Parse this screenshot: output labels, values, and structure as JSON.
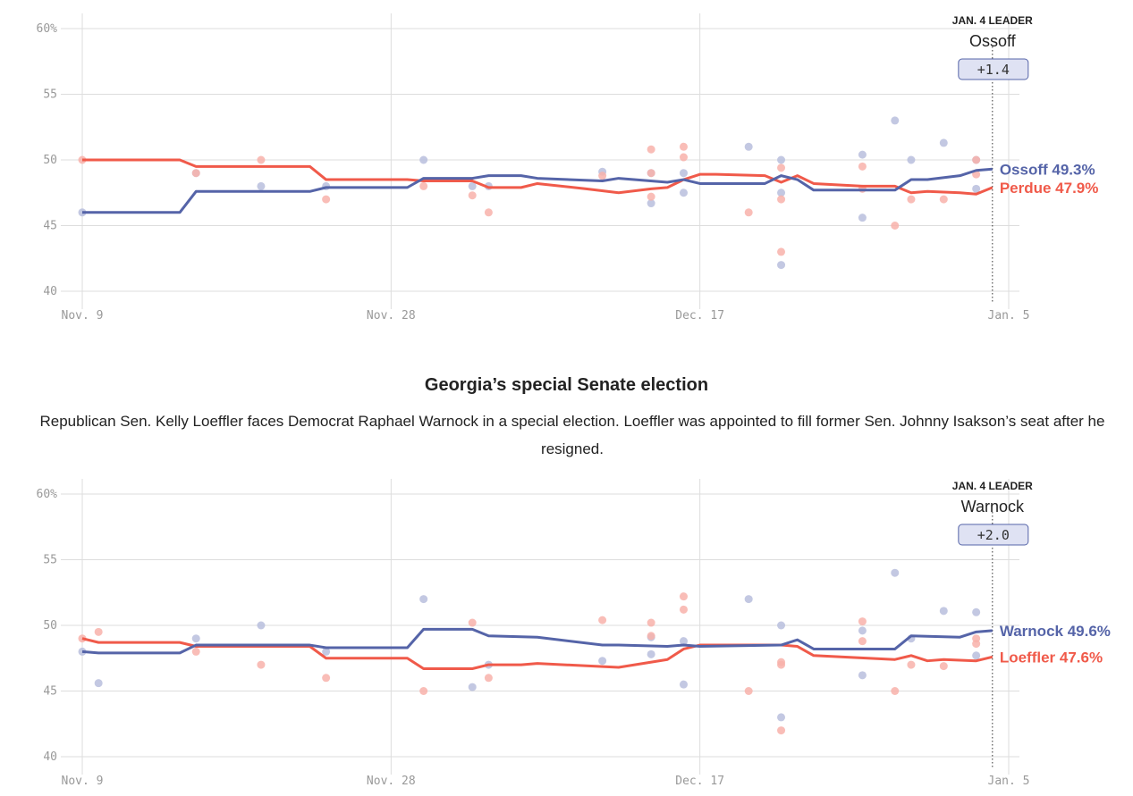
{
  "chart_data": [
    {
      "type": "line",
      "xlim": [
        "Nov. 9",
        "Jan. 5"
      ],
      "ylim": [
        40,
        60
      ],
      "xticks": [
        "Nov. 9",
        "Nov. 28",
        "Dec. 17",
        "Jan. 5"
      ],
      "yticks": [
        40,
        45,
        50,
        55,
        {
          "value": 60,
          "label": "60%"
        }
      ],
      "grid": true,
      "leader": {
        "date": "Jan. 4",
        "heading": "JAN. 4 LEADER",
        "name": "Ossoff",
        "margin": "+1.4"
      },
      "series": [
        {
          "kind": "dots",
          "color": "#b8bedd",
          "x": [
            "Nov. 9",
            "Nov. 16",
            "Nov. 20",
            "Nov. 24",
            "Nov. 30",
            "Dec. 3",
            "Dec. 4",
            "Dec. 11",
            "Dec. 14",
            "Dec. 14",
            "Dec. 16",
            "Dec. 16",
            "Dec. 20",
            "Dec. 22",
            "Dec. 22",
            "Dec. 22",
            "Dec. 27",
            "Dec. 27",
            "Dec. 29",
            "Dec. 30",
            "Jan. 1",
            "Jan. 3",
            "Jan. 3"
          ],
          "values": [
            46,
            49,
            48,
            48,
            50,
            48,
            48,
            49.1,
            49,
            46.7,
            49,
            47.5,
            51,
            50,
            47.5,
            42,
            50.4,
            45.6,
            53,
            50,
            51.3,
            50,
            47.8
          ]
        },
        {
          "kind": "dots",
          "color": "#f8b1aa",
          "x": [
            "Nov. 9",
            "Nov. 16",
            "Nov. 20",
            "Nov. 24",
            "Nov. 30",
            "Dec. 3",
            "Dec. 4",
            "Dec. 11",
            "Dec. 14",
            "Dec. 14",
            "Dec. 14",
            "Dec. 16",
            "Dec. 16",
            "Dec. 20",
            "Dec. 22",
            "Dec. 22",
            "Dec. 22",
            "Dec. 27",
            "Dec. 27",
            "Dec. 29",
            "Dec. 30",
            "Jan. 1",
            "Jan. 3",
            "Jan. 3"
          ],
          "values": [
            50,
            49,
            50,
            47,
            48,
            47.3,
            46,
            48.8,
            50.8,
            49,
            47.2,
            51,
            50.2,
            46,
            49.4,
            47,
            43,
            49.5,
            47.8,
            45,
            47,
            47,
            50,
            48.9
          ]
        },
        {
          "kind": "line",
          "color": "#f05a4a",
          "label": "Perdue 47.9%",
          "x": [
            "Nov. 9",
            "Nov. 15",
            "Nov. 16",
            "Nov. 23",
            "Nov. 24",
            "Nov. 29",
            "Nov. 30",
            "Dec. 3",
            "Dec. 4",
            "Dec. 6",
            "Dec. 7",
            "Dec. 10",
            "Dec. 12",
            "Dec. 14",
            "Dec. 15",
            "Dec. 16",
            "Dec. 17",
            "Dec. 18",
            "Dec. 21",
            "Dec. 22",
            "Dec. 23",
            "Dec. 24",
            "Dec. 27",
            "Dec. 29",
            "Dec. 30",
            "Dec. 31",
            "Jan. 2",
            "Jan. 3",
            "Jan. 4"
          ],
          "values": [
            50,
            50,
            49.5,
            49.5,
            48.5,
            48.5,
            48.4,
            48.4,
            47.9,
            47.9,
            48.2,
            47.8,
            47.5,
            47.8,
            47.9,
            48.5,
            48.9,
            48.9,
            48.8,
            48.3,
            48.8,
            48.2,
            48.0,
            48.0,
            47.5,
            47.6,
            47.5,
            47.4,
            47.9
          ]
        },
        {
          "kind": "line",
          "color": "#5564a8",
          "label": "Ossoff 49.3%",
          "x": [
            "Nov. 9",
            "Nov. 15",
            "Nov. 16",
            "Nov. 23",
            "Nov. 24",
            "Nov. 29",
            "Nov. 30",
            "Dec. 3",
            "Dec. 4",
            "Dec. 6",
            "Dec. 7",
            "Dec. 11",
            "Dec. 12",
            "Dec. 15",
            "Dec. 16",
            "Dec. 17",
            "Dec. 21",
            "Dec. 22",
            "Dec. 23",
            "Dec. 24",
            "Dec. 29",
            "Dec. 30",
            "Dec. 31",
            "Jan. 2",
            "Jan. 3",
            "Jan. 4"
          ],
          "values": [
            46,
            46,
            47.6,
            47.6,
            47.9,
            47.9,
            48.6,
            48.6,
            48.8,
            48.8,
            48.6,
            48.4,
            48.6,
            48.3,
            48.5,
            48.2,
            48.2,
            48.8,
            48.5,
            47.7,
            47.7,
            48.5,
            48.5,
            48.8,
            49.2,
            49.3
          ]
        }
      ]
    },
    {
      "type": "line",
      "title": "Georgia’s special Senate election",
      "subtitle": "Republican Sen. Kelly Loeffler faces Democrat Raphael Warnock in a special election. Loeffler was appointed to fill former Sen. Johnny Isakson’s seat after he resigned.",
      "xlim": [
        "Nov. 9",
        "Jan. 5"
      ],
      "ylim": [
        40,
        60
      ],
      "xticks": [
        "Nov. 9",
        "Nov. 28",
        "Dec. 17",
        "Jan. 5"
      ],
      "yticks": [
        40,
        45,
        50,
        55,
        {
          "value": 60,
          "label": "60%"
        }
      ],
      "grid": true,
      "leader": {
        "date": "Jan. 4",
        "heading": "JAN. 4 LEADER",
        "name": "Warnock",
        "margin": "+2.0"
      },
      "series": [
        {
          "kind": "dots",
          "color": "#b8bedd",
          "x": [
            "Nov. 9",
            "Nov. 10",
            "Nov. 16",
            "Nov. 20",
            "Nov. 24",
            "Nov. 30",
            "Dec. 3",
            "Dec. 4",
            "Dec. 11",
            "Dec. 14",
            "Dec. 14",
            "Dec. 16",
            "Dec. 16",
            "Dec. 20",
            "Dec. 22",
            "Dec. 22",
            "Dec. 27",
            "Dec. 27",
            "Dec. 29",
            "Dec. 30",
            "Jan. 1",
            "Jan. 3",
            "Jan. 3"
          ],
          "values": [
            48,
            45.6,
            49,
            50,
            48,
            52,
            45.3,
            47,
            47.3,
            49.1,
            47.8,
            48.8,
            45.5,
            52,
            50,
            43,
            49.6,
            46.2,
            54,
            49,
            51.1,
            51,
            47.7
          ]
        },
        {
          "kind": "dots",
          "color": "#f8b1aa",
          "x": [
            "Nov. 9",
            "Nov. 10",
            "Nov. 16",
            "Nov. 20",
            "Nov. 24",
            "Nov. 30",
            "Dec. 3",
            "Dec. 4",
            "Dec. 11",
            "Dec. 14",
            "Dec. 14",
            "Dec. 16",
            "Dec. 16",
            "Dec. 20",
            "Dec. 22",
            "Dec. 22",
            "Dec. 22",
            "Dec. 27",
            "Dec. 27",
            "Dec. 29",
            "Dec. 30",
            "Jan. 1",
            "Jan. 3",
            "Jan. 3"
          ],
          "values": [
            49,
            49.5,
            48,
            47,
            46,
            45,
            50.2,
            46,
            50.4,
            50.2,
            49.2,
            52.2,
            51.2,
            45,
            47.2,
            47,
            42,
            50.3,
            48.8,
            45,
            47,
            46.9,
            49,
            48.6
          ]
        },
        {
          "kind": "line",
          "color": "#f05a4a",
          "label": "Loeffler 47.6%",
          "x": [
            "Nov. 9",
            "Nov. 10",
            "Nov. 15",
            "Nov. 16",
            "Nov. 23",
            "Nov. 24",
            "Nov. 29",
            "Nov. 30",
            "Dec. 3",
            "Dec. 4",
            "Dec. 6",
            "Dec. 7",
            "Dec. 12",
            "Dec. 15",
            "Dec. 16",
            "Dec. 17",
            "Dec. 22",
            "Dec. 23",
            "Dec. 24",
            "Dec. 29",
            "Dec. 30",
            "Dec. 31",
            "Jan. 1",
            "Jan. 3",
            "Jan. 4"
          ],
          "values": [
            49.0,
            48.7,
            48.7,
            48.4,
            48.4,
            47.5,
            47.5,
            46.7,
            46.7,
            47.0,
            47.0,
            47.1,
            46.8,
            47.4,
            48.2,
            48.5,
            48.5,
            48.4,
            47.7,
            47.4,
            47.7,
            47.3,
            47.4,
            47.3,
            47.6
          ]
        },
        {
          "kind": "line",
          "color": "#5564a8",
          "label": "Warnock 49.6%",
          "x": [
            "Nov. 9",
            "Nov. 10",
            "Nov. 15",
            "Nov. 16",
            "Nov. 23",
            "Nov. 24",
            "Nov. 29",
            "Nov. 30",
            "Dec. 3",
            "Dec. 4",
            "Dec. 7",
            "Dec. 11",
            "Dec. 12",
            "Dec. 15",
            "Dec. 16",
            "Dec. 17",
            "Dec. 22",
            "Dec. 23",
            "Dec. 24",
            "Dec. 29",
            "Dec. 30",
            "Jan. 2",
            "Jan. 3",
            "Jan. 4"
          ],
          "values": [
            48.0,
            47.9,
            47.9,
            48.5,
            48.5,
            48.3,
            48.3,
            49.7,
            49.7,
            49.2,
            49.1,
            48.5,
            48.5,
            48.4,
            48.5,
            48.4,
            48.5,
            48.9,
            48.2,
            48.2,
            49.2,
            49.1,
            49.5,
            49.6
          ]
        }
      ]
    }
  ]
}
